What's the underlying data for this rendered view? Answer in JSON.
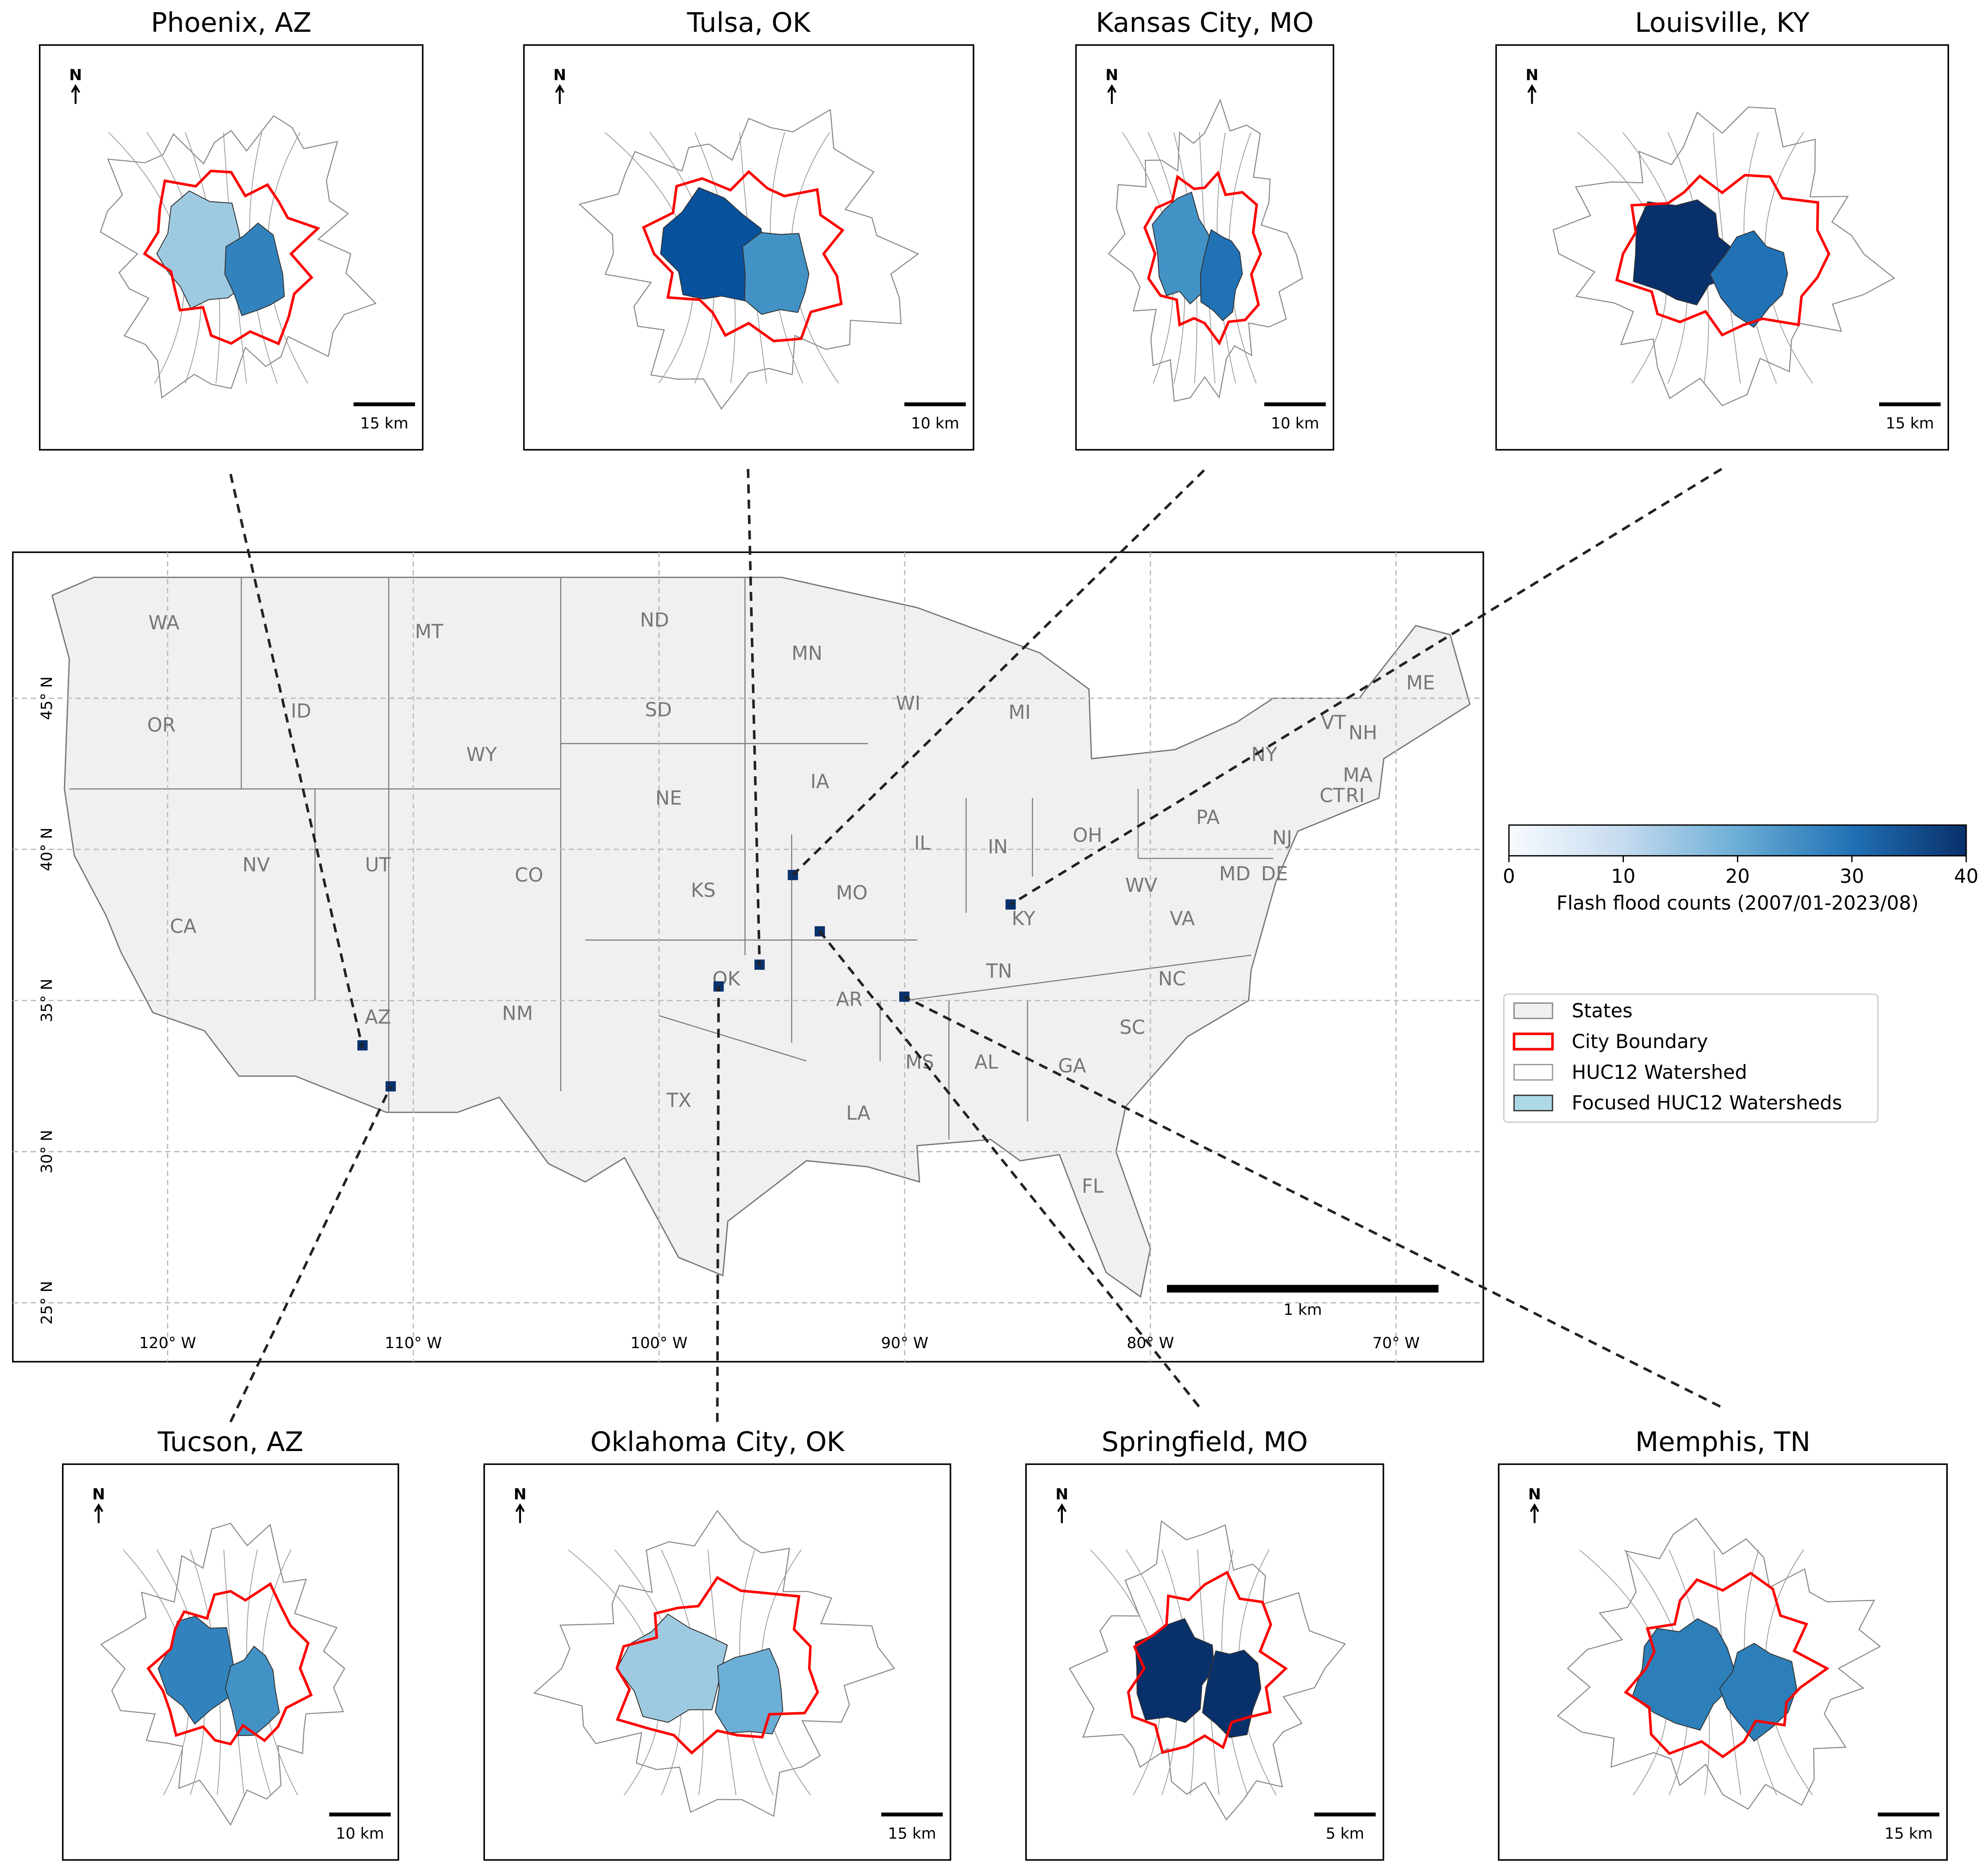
{
  "north_label": "N",
  "insets": [
    {
      "title": "Phoenix, AZ",
      "scale": "15 km"
    },
    {
      "title": "Tulsa, OK",
      "scale": "10 km"
    },
    {
      "title": "Kansas City, MO",
      "scale": "10 km"
    },
    {
      "title": "Louisville, KY",
      "scale": "15 km"
    },
    {
      "title": "Tucson, AZ",
      "scale": "10 km"
    },
    {
      "title": "Oklahoma City, OK",
      "scale": "15 km"
    },
    {
      "title": "Springfield, MO",
      "scale": "5 km"
    },
    {
      "title": "Memphis, TN",
      "scale": "15 km"
    }
  ],
  "map": {
    "xlim": [
      -126.3,
      -66.45
    ],
    "ylim": [
      23.05,
      49.83
    ],
    "xticks": [
      {
        "value": -120,
        "label": "120° W"
      },
      {
        "value": -110,
        "label": "110° W"
      },
      {
        "value": -100,
        "label": "100° W"
      },
      {
        "value": -90,
        "label": "90° W"
      },
      {
        "value": -80,
        "label": "80° W"
      },
      {
        "value": -70,
        "label": "70° W"
      }
    ],
    "yticks": [
      {
        "value": 25,
        "label": "25° N"
      },
      {
        "value": 30,
        "label": "30° N"
      },
      {
        "value": 35,
        "label": "35° N"
      },
      {
        "value": 40,
        "label": "40° N"
      },
      {
        "value": 45,
        "label": "45° N"
      }
    ],
    "states": [
      "WA",
      "MT",
      "ND",
      "MN",
      "ME",
      "ID",
      "SD",
      "WI",
      "MI",
      "OR",
      "WY",
      "NY",
      "VT",
      "NH",
      "MA",
      "IA",
      "NE",
      "CT",
      "RI",
      "PA",
      "NJ",
      "OH",
      "IL",
      "IN",
      "NV",
      "UT",
      "CO",
      "KS",
      "MO",
      "MD",
      "DE",
      "WV",
      "KY",
      "VA",
      "CA",
      "TN",
      "NC",
      "OK",
      "AR",
      "AZ",
      "NM",
      "SC",
      "MS",
      "AL",
      "GA",
      "TX",
      "LA",
      "FL"
    ],
    "scale": "1 km"
  },
  "colorbar": {
    "range": [
      0,
      40
    ],
    "ticks": [
      0,
      10,
      20,
      30,
      40
    ],
    "label": "Flash flood counts (2007/01-2023/08)"
  },
  "legend": {
    "entries": [
      "States",
      "City Boundary",
      "HUC12 Watershed",
      "Focused HUC12 Watersheds"
    ]
  }
}
